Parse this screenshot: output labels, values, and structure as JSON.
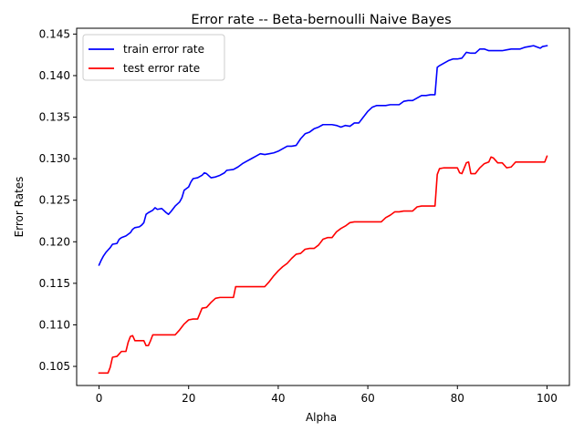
{
  "chart_data": {
    "type": "line",
    "title": "Error rate -- Beta-bernoulli Naive Bayes",
    "xlabel": "Alpha",
    "ylabel": "Error Rates",
    "xlim": [
      -5,
      105
    ],
    "ylim": [
      0.1027,
      0.1457
    ],
    "xticks": [
      0,
      20,
      40,
      60,
      80,
      100
    ],
    "xtick_labels": [
      "0",
      "20",
      "40",
      "60",
      "80",
      "100"
    ],
    "yticks": [
      0.105,
      0.11,
      0.115,
      0.12,
      0.125,
      0.13,
      0.135,
      0.14,
      0.145
    ],
    "ytick_labels": [
      "0.105",
      "0.110",
      "0.115",
      "0.120",
      "0.125",
      "0.130",
      "0.135",
      "0.140",
      "0.145"
    ],
    "grid": false,
    "legend_position": "top-left",
    "series": [
      {
        "name": "train error rate",
        "color": "#0000ff",
        "points": [
          [
            0,
            0.1172
          ],
          [
            0.5,
            0.1178
          ],
          [
            1,
            0.1183
          ],
          [
            1.5,
            0.1187
          ],
          [
            2,
            0.119
          ],
          [
            2.5,
            0.1193
          ],
          [
            3,
            0.1197
          ],
          [
            4,
            0.1198
          ],
          [
            4.5,
            0.1203
          ],
          [
            5,
            0.1205
          ],
          [
            6,
            0.1207
          ],
          [
            7,
            0.1211
          ],
          [
            7.5,
            0.1215
          ],
          [
            8,
            0.1217
          ],
          [
            9,
            0.1218
          ],
          [
            9.5,
            0.122
          ],
          [
            10,
            0.1223
          ],
          [
            10.5,
            0.1233
          ],
          [
            11,
            0.1235
          ],
          [
            12,
            0.1238
          ],
          [
            12.5,
            0.1241
          ],
          [
            13,
            0.1239
          ],
          [
            14,
            0.124
          ],
          [
            15,
            0.1235
          ],
          [
            15.5,
            0.1233
          ],
          [
            16,
            0.1236
          ],
          [
            17,
            0.1243
          ],
          [
            18,
            0.1248
          ],
          [
            18.5,
            0.1253
          ],
          [
            19,
            0.1262
          ],
          [
            20,
            0.1266
          ],
          [
            20.5,
            0.1272
          ],
          [
            21,
            0.1276
          ],
          [
            22,
            0.1277
          ],
          [
            23,
            0.128
          ],
          [
            23.5,
            0.1283
          ],
          [
            24,
            0.1282
          ],
          [
            25,
            0.1277
          ],
          [
            26,
            0.1278
          ],
          [
            27,
            0.128
          ],
          [
            28,
            0.1283
          ],
          [
            28.5,
            0.1286
          ],
          [
            30,
            0.1287
          ],
          [
            31,
            0.129
          ],
          [
            32,
            0.1294
          ],
          [
            33,
            0.1297
          ],
          [
            34,
            0.13
          ],
          [
            35,
            0.1303
          ],
          [
            36,
            0.1306
          ],
          [
            37,
            0.1305
          ],
          [
            38,
            0.1306
          ],
          [
            39,
            0.1307
          ],
          [
            40,
            0.1309
          ],
          [
            41,
            0.1312
          ],
          [
            42,
            0.1315
          ],
          [
            43,
            0.1315
          ],
          [
            44,
            0.1316
          ],
          [
            45,
            0.1324
          ],
          [
            46,
            0.133
          ],
          [
            47,
            0.1332
          ],
          [
            48,
            0.1336
          ],
          [
            49,
            0.1338
          ],
          [
            50,
            0.1341
          ],
          [
            51,
            0.1341
          ],
          [
            52,
            0.1341
          ],
          [
            53,
            0.134
          ],
          [
            54,
            0.1338
          ],
          [
            55,
            0.134
          ],
          [
            56,
            0.1339
          ],
          [
            57,
            0.1343
          ],
          [
            58,
            0.1343
          ],
          [
            59,
            0.135
          ],
          [
            60,
            0.1357
          ],
          [
            61,
            0.1362
          ],
          [
            62,
            0.1364
          ],
          [
            63,
            0.1364
          ],
          [
            64,
            0.1364
          ],
          [
            65,
            0.1365
          ],
          [
            66,
            0.1365
          ],
          [
            67,
            0.1365
          ],
          [
            68,
            0.1369
          ],
          [
            69,
            0.137
          ],
          [
            70,
            0.137
          ],
          [
            71,
            0.1373
          ],
          [
            72,
            0.1376
          ],
          [
            73,
            0.1376
          ],
          [
            74,
            0.1377
          ],
          [
            75,
            0.1377
          ],
          [
            75.5,
            0.141
          ],
          [
            76,
            0.1412
          ],
          [
            77,
            0.1415
          ],
          [
            78,
            0.1418
          ],
          [
            79,
            0.142
          ],
          [
            80,
            0.142
          ],
          [
            81,
            0.1421
          ],
          [
            82,
            0.1428
          ],
          [
            83,
            0.1427
          ],
          [
            84,
            0.1427
          ],
          [
            85,
            0.1432
          ],
          [
            86,
            0.1432
          ],
          [
            87,
            0.143
          ],
          [
            88,
            0.143
          ],
          [
            89,
            0.143
          ],
          [
            90,
            0.143
          ],
          [
            91,
            0.1431
          ],
          [
            92,
            0.1432
          ],
          [
            93,
            0.1432
          ],
          [
            94,
            0.1432
          ],
          [
            95,
            0.1434
          ],
          [
            96,
            0.1435
          ],
          [
            97,
            0.1436
          ],
          [
            98,
            0.1434
          ],
          [
            98.5,
            0.1433
          ],
          [
            99,
            0.1435
          ],
          [
            100,
            0.1436
          ]
        ]
      },
      {
        "name": "test error rate",
        "color": "#ff0000",
        "points": [
          [
            0,
            0.1042
          ],
          [
            1,
            0.1042
          ],
          [
            2,
            0.1042
          ],
          [
            2.5,
            0.1049
          ],
          [
            3,
            0.1061
          ],
          [
            4,
            0.1062
          ],
          [
            5,
            0.1068
          ],
          [
            6,
            0.1068
          ],
          [
            6.5,
            0.1079
          ],
          [
            7,
            0.1086
          ],
          [
            7.5,
            0.1087
          ],
          [
            8,
            0.1081
          ],
          [
            9,
            0.1081
          ],
          [
            10,
            0.1081
          ],
          [
            10.5,
            0.1075
          ],
          [
            11,
            0.1075
          ],
          [
            11.5,
            0.1081
          ],
          [
            12,
            0.1088
          ],
          [
            13,
            0.1088
          ],
          [
            14,
            0.1088
          ],
          [
            15,
            0.1088
          ],
          [
            16,
            0.1088
          ],
          [
            17,
            0.1088
          ],
          [
            18,
            0.1094
          ],
          [
            19,
            0.1101
          ],
          [
            20,
            0.1106
          ],
          [
            21,
            0.1107
          ],
          [
            22,
            0.1107
          ],
          [
            23,
            0.112
          ],
          [
            24,
            0.1121
          ],
          [
            25,
            0.1127
          ],
          [
            26,
            0.1132
          ],
          [
            27,
            0.1133
          ],
          [
            28,
            0.1133
          ],
          [
            29,
            0.1133
          ],
          [
            30,
            0.1133
          ],
          [
            30.5,
            0.1146
          ],
          [
            31,
            0.1146
          ],
          [
            32,
            0.1146
          ],
          [
            33,
            0.1146
          ],
          [
            34,
            0.1146
          ],
          [
            35,
            0.1146
          ],
          [
            36,
            0.1146
          ],
          [
            37,
            0.1146
          ],
          [
            38,
            0.1152
          ],
          [
            39,
            0.1159
          ],
          [
            40,
            0.1165
          ],
          [
            41,
            0.117
          ],
          [
            42,
            0.1174
          ],
          [
            43,
            0.118
          ],
          [
            44,
            0.1185
          ],
          [
            45,
            0.1186
          ],
          [
            46,
            0.1191
          ],
          [
            47,
            0.1192
          ],
          [
            48,
            0.1192
          ],
          [
            49,
            0.1196
          ],
          [
            50,
            0.1203
          ],
          [
            51,
            0.1205
          ],
          [
            52,
            0.1205
          ],
          [
            53,
            0.1212
          ],
          [
            54,
            0.1216
          ],
          [
            55,
            0.1219
          ],
          [
            56,
            0.1223
          ],
          [
            57,
            0.1224
          ],
          [
            58,
            0.1224
          ],
          [
            59,
            0.1224
          ],
          [
            60,
            0.1224
          ],
          [
            61,
            0.1224
          ],
          [
            62,
            0.1224
          ],
          [
            63,
            0.1224
          ],
          [
            64,
            0.1229
          ],
          [
            65,
            0.1232
          ],
          [
            66,
            0.1236
          ],
          [
            67,
            0.1236
          ],
          [
            68,
            0.1237
          ],
          [
            69,
            0.1237
          ],
          [
            70,
            0.1237
          ],
          [
            71,
            0.1242
          ],
          [
            72,
            0.1243
          ],
          [
            73,
            0.1243
          ],
          [
            74,
            0.1243
          ],
          [
            75,
            0.1243
          ],
          [
            75.5,
            0.1281
          ],
          [
            76,
            0.1288
          ],
          [
            77,
            0.1289
          ],
          [
            78,
            0.1289
          ],
          [
            79,
            0.1289
          ],
          [
            80,
            0.1289
          ],
          [
            80.5,
            0.1283
          ],
          [
            81,
            0.1282
          ],
          [
            82,
            0.1295
          ],
          [
            82.5,
            0.1296
          ],
          [
            83,
            0.1282
          ],
          [
            84,
            0.1282
          ],
          [
            85,
            0.1289
          ],
          [
            86,
            0.1294
          ],
          [
            87,
            0.1296
          ],
          [
            87.5,
            0.1302
          ],
          [
            88,
            0.1301
          ],
          [
            89,
            0.1295
          ],
          [
            90,
            0.1295
          ],
          [
            91,
            0.1289
          ],
          [
            92,
            0.129
          ],
          [
            93,
            0.1296
          ],
          [
            94,
            0.1296
          ],
          [
            95,
            0.1296
          ],
          [
            96,
            0.1296
          ],
          [
            97,
            0.1296
          ],
          [
            98,
            0.1296
          ],
          [
            99,
            0.1296
          ],
          [
            99.5,
            0.1296
          ],
          [
            100,
            0.1303
          ]
        ]
      }
    ]
  }
}
